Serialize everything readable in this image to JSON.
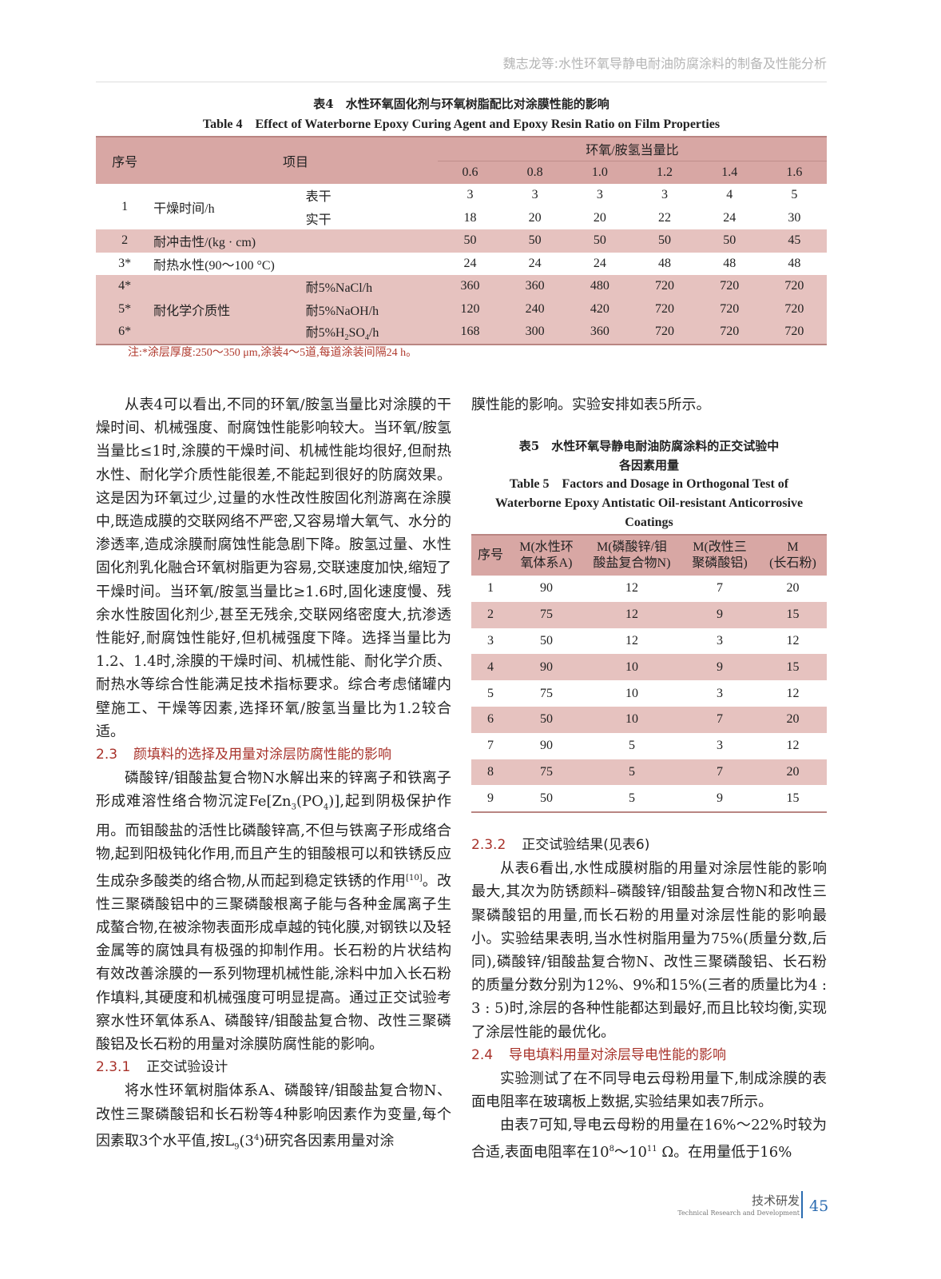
{
  "running_head": "魏志龙等:水性环氧导静电耐油防腐涂料的制备及性能分析",
  "table4": {
    "caption_cn": "表4　水性环氧固化剂与环氧树脂配比对涂膜性能的影响",
    "caption_en": "Table 4　Effect of Waterborne Epoxy Curing Agent and Epoxy Resin Ratio on Film Properties",
    "h_no": "序号",
    "h_item": "项目",
    "h_ratio": "环氧/胺氢当量比",
    "ratios": [
      "0.6",
      "0.8",
      "1.0",
      "1.2",
      "1.4",
      "1.6"
    ],
    "rows": [
      {
        "no": "1",
        "item": "干燥时间/h",
        "sub": "表干",
        "v": [
          "3",
          "3",
          "3",
          "3",
          "4",
          "5"
        ]
      },
      {
        "sub": "实干",
        "v": [
          "18",
          "20",
          "20",
          "22",
          "24",
          "30"
        ]
      },
      {
        "no": "2",
        "item": "耐冲击性/(kg · cm)",
        "v": [
          "50",
          "50",
          "50",
          "50",
          "50",
          "45"
        ]
      },
      {
        "no": "3*",
        "item": "耐热水性(90～100 °C)",
        "v": [
          "24",
          "24",
          "24",
          "48",
          "48",
          "48"
        ]
      },
      {
        "no": "4*",
        "sub": "耐5%NaCl/h",
        "v": [
          "360",
          "360",
          "480",
          "720",
          "720",
          "720"
        ]
      },
      {
        "no": "5*",
        "item": "耐化学介质性",
        "sub": "耐5%NaOH/h",
        "v": [
          "120",
          "240",
          "420",
          "720",
          "720",
          "720"
        ]
      },
      {
        "no": "6*",
        "sub_a": "耐5%H",
        "sub_b": "2",
        "sub_c": "SO",
        "sub_d": "4",
        "sub_e": "/h",
        "v": [
          "168",
          "300",
          "360",
          "720",
          "720",
          "720"
        ]
      }
    ],
    "note": "注:*涂层厚度:250～350 μm,涂装4～5道,每道涂装间隔24 h。"
  },
  "left": {
    "p1": "从表4可以看出,不同的环氧/胺氢当量比对涂膜的干燥时间、机械强度、耐腐蚀性能影响较大。当环氧/胺氢当量比≤1时,涂膜的干燥时间、机械性能均很好,但耐热水性、耐化学介质性能很差,不能起到很好的防腐效果。这是因为环氧过少,过量的水性改性胺固化剂游离在涂膜中,既造成膜的交联网络不严密,又容易增大氧气、水分的渗透率,造成涂膜耐腐蚀性能急剧下降。胺氢过量、水性固化剂乳化融合环氧树脂更为容易,交联速度加快,缩短了干燥时间。当环氧/胺氢当量比≥1.6时,固化速度慢、残余水性胺固化剂少,甚至无残余,交联网络密度大,抗渗透性能好,耐腐蚀性能好,但机械强度下降。选择当量比为1.2、1.4时,涂膜的干燥时间、机械性能、耐化学介质、耐热水等综合性能满足技术指标要求。综合考虑储罐内壁施工、干燥等因素,选择环氧/胺氢当量比为1.2较合适。",
    "h23_num": "2.3",
    "h23": "颜填料的选择及用量对涂层防腐性能的影响",
    "p2_a": "磷酸锌/钼酸盐复合物N水解出来的锌离子和铁离子形成难溶性络合物沉淀Fe[Zn",
    "p2_b": "3",
    "p2_c": "(PO",
    "p2_d": "4",
    "p2_e": ")],起到阴极保护作用。而钼酸盐的活性比磷酸锌高,不但与铁离子形成络合物,起到阳极钝化作用,而且产生的钼酸根可以和铁锈反应生成杂多酸类的络合物,从而起到稳定铁锈的作用",
    "p2_ref": "[10]",
    "p2_f": "。改性三聚磷酸铝中的三聚磷酸根离子能与各种金属离子生成螯合物,在被涂物表面形成卓越的钝化膜,对钢铁以及轻金属等的腐蚀具有极强的抑制作用。长石粉的片状结构有效改善涂膜的一系列物理机械性能,涂料中加入长石粉作填料,其硬度和机械强度可明显提高。通过正交试验考察水性环氧体系A、磷酸锌/钼酸盐复合物、改性三聚磷酸铝及长石粉的用量对涂膜防腐性能的影响。",
    "h231_num": "2.3.1",
    "h231": "正交试验设计",
    "p3_a": "将水性环氧树脂体系A、磷酸锌/钼酸盐复合物N、改性三聚磷酸铝和长石粉等4种影响因素作为变量,每个因素取3个水平值,按L",
    "p3_b": "9",
    "p3_c": "(3",
    "p3_d": "4",
    "p3_e": ")研究各因素用量对涂"
  },
  "right": {
    "p0": "膜性能的影响。实验安排如表5所示。",
    "table5": {
      "caption_cn_1": "表5　水性环氧导静电耐油防腐涂料的正交试验中",
      "caption_cn_2": "各因素用量",
      "caption_en_1": "Table 5　Factors and Dosage in Orthogonal Test of",
      "caption_en_2": "Waterborne Epoxy Antistatic Oil-resistant Anticorrosive",
      "caption_en_3": "Coatings",
      "headers": [
        {
          "a": "序号",
          "b": ""
        },
        {
          "a": "M(水性环",
          "b": "氧体系A)"
        },
        {
          "a": "M(磷酸锌/钼",
          "b": "酸盐复合物N)"
        },
        {
          "a": "M(改性三",
          "b": "聚磷酸铝)"
        },
        {
          "a": "M",
          "b": "(长石粉)"
        }
      ],
      "rows": [
        [
          "1",
          "90",
          "12",
          "7",
          "20"
        ],
        [
          "2",
          "75",
          "12",
          "9",
          "15"
        ],
        [
          "3",
          "50",
          "12",
          "3",
          "12"
        ],
        [
          "4",
          "90",
          "10",
          "9",
          "15"
        ],
        [
          "5",
          "75",
          "10",
          "3",
          "12"
        ],
        [
          "6",
          "50",
          "10",
          "7",
          "20"
        ],
        [
          "7",
          "90",
          "5",
          "3",
          "12"
        ],
        [
          "8",
          "75",
          "5",
          "7",
          "20"
        ],
        [
          "9",
          "50",
          "5",
          "9",
          "15"
        ]
      ]
    },
    "h232_num": "2.3.2",
    "h232": "正交试验结果(见表6)",
    "p4": "从表6看出,水性成膜树脂的用量对涂层性能的影响最大,其次为防锈颜料–磷酸锌/钼酸盐复合物N和改性三聚磷酸铝的用量,而长石粉的用量对涂层性能的影响最小。实验结果表明,当水性树脂用量为75%(质量分数,后同),磷酸锌/钼酸盐复合物N、改性三聚磷酸铝、长石粉的质量分数分别为12%、9%和15%(三者的质量比为4 : 3 : 5)时,涂层的各种性能都达到最好,而且比较均衡,实现了涂层性能的最优化。",
    "h24_num": "2.4",
    "h24": "导电填料用量对涂层导电性能的影响",
    "p5": "实验测试了在不同导电云母粉用量下,制成涂膜的表面电阻率在玻璃板上数据,实验结果如表7所示。",
    "p6_a": "由表7可知,导电云母粉的用量在16%～22%时较为合适,表面电阻率在10",
    "p6_b": "8",
    "p6_c": "～10",
    "p6_d": "11",
    "p6_e": " Ω。在用量低于16%"
  },
  "footer": {
    "section_cn": "技术研发",
    "section_en": "Technical Research and Development",
    "page": "45",
    "accent": "#2a6bb0"
  }
}
